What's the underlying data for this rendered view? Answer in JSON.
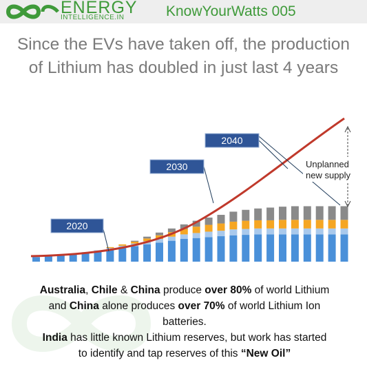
{
  "header": {
    "brand": "ENERGY",
    "brand_sub": "INTELLIGENCE.IN",
    "tag": "KnowYourWatts 005",
    "accent": "#3f9a3a"
  },
  "title": {
    "line1": "Since the EVs have taken off, the production",
    "line2": "of Lithium  has doubled in just last 4 years"
  },
  "chart_data": {
    "type": "bar",
    "callouts": [
      "2020",
      "2030",
      "2040"
    ],
    "annotation_line1": "Unplanned",
    "annotation_line2": "new supply",
    "curve_color": "#c0392b",
    "segment_colors": [
      "#4a90d9",
      "#a9c9ec",
      "#f5a623",
      "#8a8a8a"
    ],
    "bar_count": 26,
    "note": "",
    "stack_levels": [
      [
        1,
        0,
        0,
        0
      ],
      [
        1.2,
        0,
        0,
        0
      ],
      [
        1.4,
        0,
        0,
        0
      ],
      [
        1.6,
        0,
        0,
        0
      ],
      [
        1.9,
        0.2,
        0,
        0
      ],
      [
        2.2,
        0.3,
        0,
        0
      ],
      [
        2.6,
        0.4,
        0.2,
        0
      ],
      [
        3.0,
        0.5,
        0.3,
        0
      ],
      [
        3.4,
        0.6,
        0.4,
        0.2
      ],
      [
        3.8,
        0.7,
        0.6,
        0.4
      ],
      [
        4.2,
        0.8,
        0.8,
        0.6
      ],
      [
        4.6,
        0.9,
        1.0,
        0.8
      ],
      [
        5.0,
        1.0,
        1.2,
        1.0
      ],
      [
        5.2,
        1.1,
        1.4,
        1.3
      ],
      [
        5.4,
        1.2,
        1.5,
        1.6
      ],
      [
        5.6,
        1.2,
        1.6,
        1.9
      ],
      [
        5.8,
        1.3,
        1.7,
        2.2
      ],
      [
        5.9,
        1.3,
        1.8,
        2.4
      ],
      [
        6.0,
        1.3,
        1.8,
        2.6
      ],
      [
        6.0,
        1.3,
        1.8,
        2.8
      ],
      [
        6.0,
        1.3,
        1.9,
        2.9
      ],
      [
        6.0,
        1.3,
        1.9,
        3.0
      ],
      [
        6.0,
        1.3,
        1.9,
        3.0
      ],
      [
        6.0,
        1.3,
        1.9,
        3.0
      ],
      [
        6.0,
        1.3,
        1.9,
        3.0
      ],
      [
        6.0,
        1.3,
        1.9,
        3.0
      ]
    ]
  },
  "caption": {
    "l1_a": "Australia",
    "l1_b": ", ",
    "l1_c": "Chile",
    "l1_d": " & ",
    "l1_e": "China",
    "l1_f": " produce ",
    "l1_g": "over 80%",
    "l1_h": " of world Lithium",
    "l2_a": "and ",
    "l2_b": "China",
    "l2_c": " alone produces ",
    "l2_d": "over 70%",
    "l2_e": " of world Lithium Ion",
    "l3": "batteries.",
    "l4_a": "India",
    "l4_b": " has little known Lithium reserves, but work has started",
    "l5_a": "to identify and tap reserves of this ",
    "l5_b": "“New Oil”"
  }
}
